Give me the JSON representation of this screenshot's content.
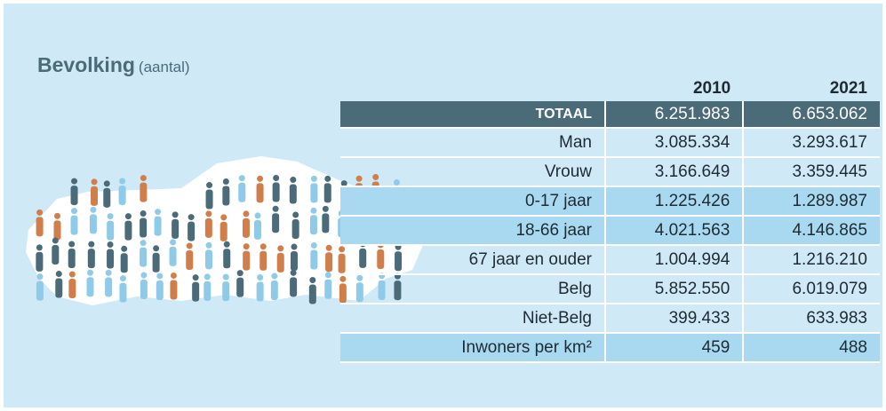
{
  "header": {
    "title": "Bevolking",
    "subtitle": "(aantal)"
  },
  "table": {
    "columns": [
      "2010",
      "2021"
    ],
    "rows": [
      [
        "TOTAAL",
        "6.251.983",
        "6.653.062"
      ],
      [
        "Man",
        "3.085.334",
        "3.293.617"
      ],
      [
        "Vrouw",
        "3.166.649",
        "3.359.445"
      ],
      [
        "0-17 jaar",
        "1.225.426",
        "1.289.987"
      ],
      [
        "18-66 jaar",
        "4.021.563",
        "4.146.865"
      ],
      [
        "67 jaar en ouder",
        "1.004.994",
        "1.216.210"
      ],
      [
        "Belg",
        "5.852.550",
        "6.019.079"
      ],
      [
        "Niet-Belg",
        "399.433",
        "633.983"
      ],
      [
        "Inwoners per km²",
        "459",
        "488"
      ]
    ]
  }
}
